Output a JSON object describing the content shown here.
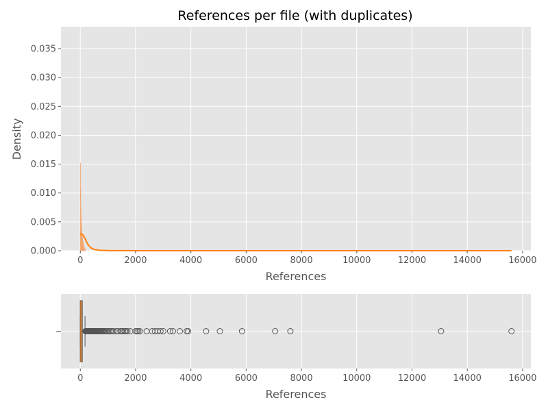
{
  "colors": {
    "axes_bg": "#E5E5E5",
    "grid": "#FFFFFF",
    "hist_fill": "#E8B98F",
    "hist_edge": "#F4A46A",
    "kde": "#FF7F0E",
    "box_fill": "#B8987A",
    "box_edge": "#555555",
    "median": "#FF7F0E",
    "flier": "#555555"
  },
  "chart_data": [
    {
      "type": "area",
      "title": "References per file (with duplicates)",
      "xlabel": "References",
      "ylabel": "Density",
      "xlim": [
        -700,
        16300
      ],
      "ylim": [
        0,
        0.0388
      ],
      "grid": true,
      "xticks": [
        0,
        2000,
        4000,
        6000,
        8000,
        10000,
        12000,
        14000,
        16000
      ],
      "xtick_labels": [
        "0",
        "2000",
        "4000",
        "6000",
        "8000",
        "10000",
        "12000",
        "14000",
        "16000"
      ],
      "yticks": [
        0.0,
        0.005,
        0.01,
        0.015,
        0.02,
        0.025,
        0.03,
        0.035
      ],
      "ytick_labels": [
        "0.000",
        "0.005",
        "0.010",
        "0.015",
        "0.020",
        "0.025",
        "0.030",
        "0.035"
      ],
      "histogram": {
        "bins": [
          {
            "x0": 0,
            "x1": 10,
            "density": 0.0152
          },
          {
            "x0": 10,
            "x1": 20,
            "density": 0.0108
          },
          {
            "x0": 20,
            "x1": 30,
            "density": 0.0074
          },
          {
            "x0": 30,
            "x1": 40,
            "density": 0.0056
          },
          {
            "x0": 40,
            "x1": 50,
            "density": 0.0044
          },
          {
            "x0": 50,
            "x1": 60,
            "density": 0.0036
          },
          {
            "x0": 60,
            "x1": 70,
            "density": 0.003
          },
          {
            "x0": 70,
            "x1": 80,
            "density": 0.0026
          },
          {
            "x0": 80,
            "x1": 90,
            "density": 0.0022
          },
          {
            "x0": 90,
            "x1": 100,
            "density": 0.0018
          },
          {
            "x0": 100,
            "x1": 110,
            "density": 0.0015
          },
          {
            "x0": 110,
            "x1": 120,
            "density": 0.0012
          },
          {
            "x0": 120,
            "x1": 130,
            "density": 0.001
          },
          {
            "x0": 130,
            "x1": 140,
            "density": 0.0008
          },
          {
            "x0": 140,
            "x1": 150,
            "density": 0.0006
          },
          {
            "x0": 150,
            "x1": 170,
            "density": 0.0004
          },
          {
            "x0": 170,
            "x1": 200,
            "density": 0.0002
          }
        ]
      },
      "kde": {
        "x": [
          0,
          50,
          100,
          150,
          200,
          250,
          300,
          400,
          500,
          700,
          1000,
          1500,
          2000,
          3000,
          5000,
          8000,
          12000,
          15600
        ],
        "y": [
          0.0029,
          0.0029,
          0.0027,
          0.0023,
          0.0018,
          0.0013,
          0.0009,
          0.00045,
          0.00022,
          8e-05,
          3e-05,
          1e-05,
          5e-06,
          2e-06,
          1e-06,
          5e-07,
          3e-07,
          2e-07
        ]
      }
    },
    {
      "type": "box",
      "xlabel": "References",
      "xlim": [
        -700,
        16300
      ],
      "grid": true,
      "xticks": [
        0,
        2000,
        4000,
        6000,
        8000,
        10000,
        12000,
        14000,
        16000
      ],
      "xtick_labels": [
        "0",
        "2000",
        "4000",
        "6000",
        "8000",
        "10000",
        "12000",
        "14000",
        "16000"
      ],
      "ytick_labels": [
        "-"
      ],
      "box": {
        "q1": 0,
        "median": 20,
        "q3": 70,
        "whisker_low": 0,
        "whisker_high": 170
      },
      "fliers": [
        185,
        200,
        215,
        230,
        245,
        260,
        275,
        290,
        305,
        320,
        340,
        360,
        380,
        400,
        420,
        440,
        460,
        480,
        500,
        525,
        550,
        575,
        600,
        625,
        650,
        680,
        710,
        740,
        770,
        800,
        840,
        880,
        920,
        960,
        1000,
        1050,
        1100,
        1150,
        1200,
        1300,
        1350,
        1450,
        1500,
        1550,
        1600,
        1650,
        1700,
        1800,
        2000,
        2050,
        2100,
        2150,
        2400,
        2600,
        2700,
        2800,
        2900,
        3000,
        3250,
        3350,
        3600,
        3850,
        3900,
        4550,
        5050,
        5850,
        7050,
        7600,
        13050,
        15600
      ]
    }
  ]
}
